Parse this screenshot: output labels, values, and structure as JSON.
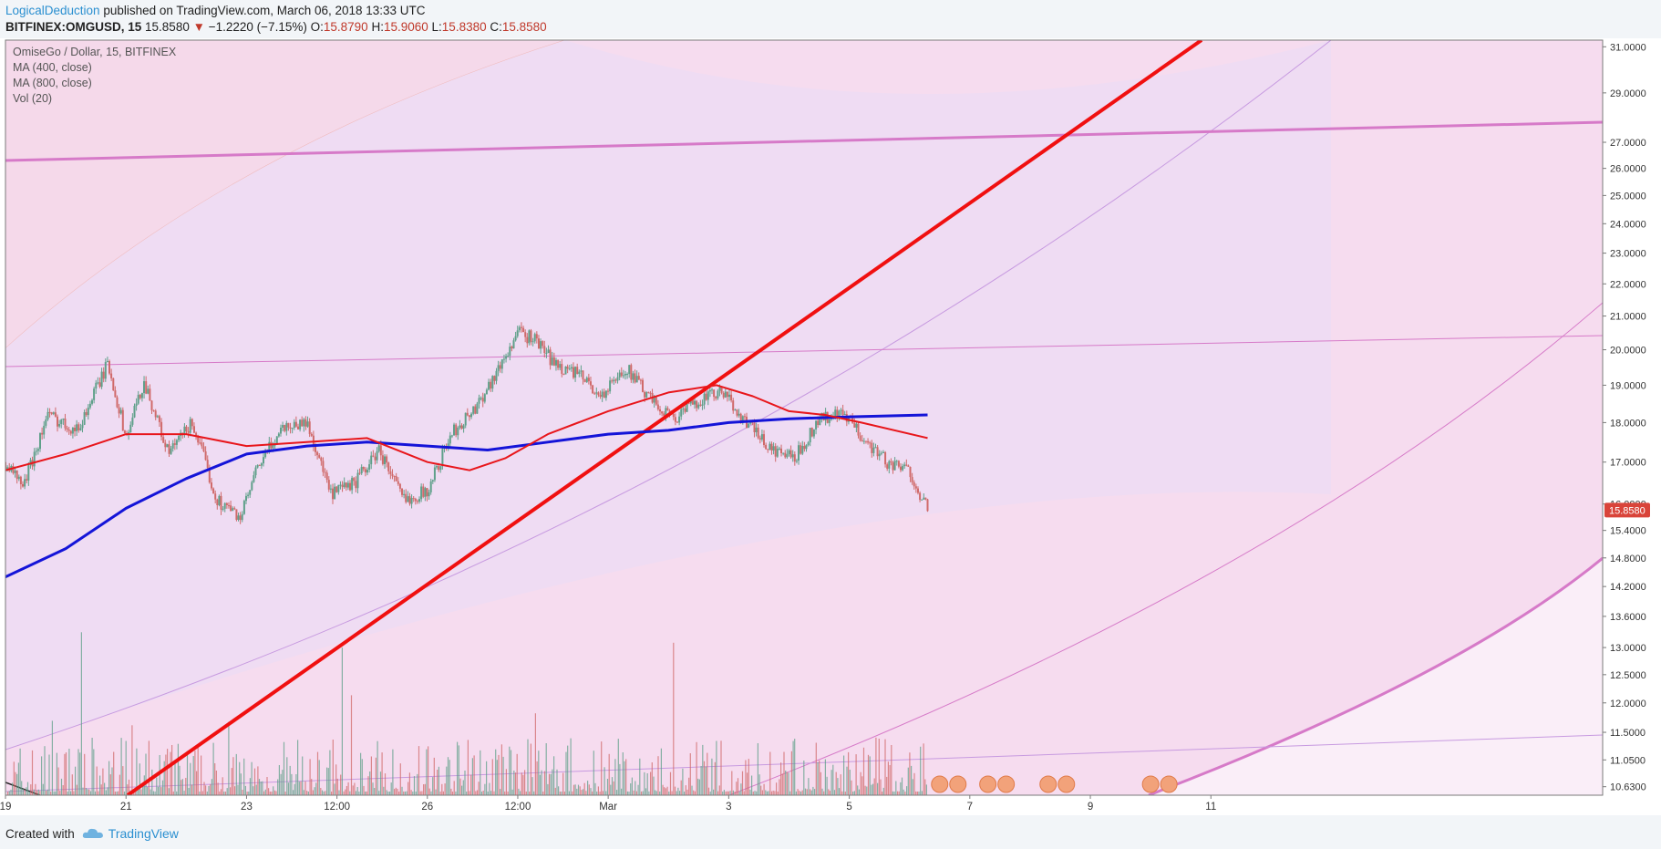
{
  "header": {
    "author": "LogicalDeduction",
    "published": "published on TradingView.com, March 06, 2018 13:33 UTC",
    "symbol": "BITFINEX:OMGUSD, 15",
    "last": "15.8580",
    "arrow": "▼",
    "change": "−1.2220 (−7.15%)",
    "o_label": "O:",
    "o_value": "15.8790",
    "h_label": "H:",
    "h_value": "15.9060",
    "l_label": "L:",
    "l_value": "15.8380",
    "c_label": "C:",
    "c_value": "15.8580"
  },
  "legend": {
    "title": "OmiseGo / Dollar, 15, BITFINEX",
    "ma400": "MA (400, close)",
    "ma800": "MA (800, close)",
    "vol": "Vol (20)"
  },
  "price_badge": "15.8580",
  "footer": {
    "created_with": "Created with",
    "brand": "TradingView"
  },
  "colors": {
    "ma400": "#e8161b",
    "ma800": "#1414d8",
    "trendline": "#f01010",
    "channel": "#d67ac8",
    "arc": "#c79ae0",
    "candle_up": "#5fa08a",
    "candle_down": "#d06a6a",
    "price_badge": "#d9443a"
  },
  "chart_data": {
    "type": "line",
    "title": "OmiseGo / Dollar, 15, BITFINEX",
    "y_axis": {
      "scale": "log",
      "ticks": [
        31.0,
        29.0,
        27.0,
        26.0,
        25.0,
        24.0,
        23.0,
        22.0,
        21.0,
        20.0,
        19.0,
        18.0,
        17.0,
        16.0,
        15.4,
        14.8,
        14.2,
        13.6,
        13.0,
        12.5,
        12.0,
        11.5,
        11.05,
        10.63
      ],
      "tick_labels": [
        "31.0000",
        "29.0000",
        "27.0000",
        "26.0000",
        "25.0000",
        "24.0000",
        "23.0000",
        "22.0000",
        "21.0000",
        "20.0000",
        "19.0000",
        "18.0000",
        "17.0000",
        "16.0000",
        "15.4000",
        "14.8000",
        "14.2000",
        "13.6000",
        "13.0000",
        "12.5000",
        "12.0000",
        "11.5000",
        "11.0500",
        "10.6300"
      ],
      "range": [
        10.5,
        31.3
      ]
    },
    "x_axis": {
      "tick_labels": [
        "19",
        "21",
        "23",
        "12:00",
        "26",
        "12:00",
        "Mar",
        "3",
        "5",
        "7",
        "9",
        "11"
      ],
      "tick_days": [
        0,
        2,
        4,
        5.5,
        7,
        8.5,
        10,
        12,
        14,
        16,
        18,
        20
      ],
      "range": [
        0,
        26.5
      ]
    },
    "series": [
      {
        "name": "OmiseGo / Dollar",
        "x": [
          0,
          0.3,
          0.7,
          1.2,
          1.7,
          2.0,
          2.3,
          2.7,
          3.1,
          3.5,
          3.9,
          4.2,
          4.6,
          5.0,
          5.4,
          5.8,
          6.2,
          6.6,
          7.0,
          7.4,
          7.8,
          8.2,
          8.5,
          8.8,
          9.1,
          9.5,
          9.9,
          10.3,
          10.7,
          11.1,
          11.5,
          11.9,
          12.3,
          12.7,
          13.1,
          13.5,
          13.9,
          14.3,
          14.7,
          15.0,
          15.3
        ],
        "y": [
          17.0,
          16.4,
          18.2,
          17.8,
          19.6,
          17.6,
          19.1,
          17.2,
          18.0,
          16.1,
          15.7,
          16.9,
          17.9,
          18.0,
          16.2,
          16.5,
          17.3,
          16.1,
          16.3,
          17.7,
          18.4,
          19.5,
          20.5,
          20.3,
          19.6,
          19.3,
          18.7,
          19.5,
          18.6,
          18.1,
          18.6,
          18.8,
          18.0,
          17.3,
          17.1,
          18.1,
          18.2,
          17.5,
          16.9,
          16.8,
          15.86
        ]
      },
      {
        "name": "MA (400, close)",
        "x": [
          0,
          1,
          2,
          3,
          4,
          5,
          6,
          7,
          7.7,
          8.3,
          9,
          10,
          11,
          11.8,
          12.4,
          13,
          13.6,
          14.2,
          15.3
        ],
        "y": [
          16.8,
          17.2,
          17.7,
          17.7,
          17.4,
          17.5,
          17.6,
          17.0,
          16.8,
          17.1,
          17.7,
          18.3,
          18.8,
          19.0,
          18.7,
          18.3,
          18.2,
          18.0,
          17.6
        ]
      },
      {
        "name": "MA (800, close)",
        "x": [
          0,
          1,
          2,
          3,
          4,
          5,
          6,
          7,
          8,
          9,
          10,
          11,
          12,
          13,
          14,
          15.3
        ],
        "y": [
          14.4,
          15.0,
          15.9,
          16.6,
          17.2,
          17.4,
          17.5,
          17.4,
          17.3,
          17.5,
          17.7,
          17.8,
          18.0,
          18.1,
          18.15,
          18.2
        ]
      }
    ],
    "volume": {
      "name": "Vol (20)",
      "bars": 600
    }
  }
}
